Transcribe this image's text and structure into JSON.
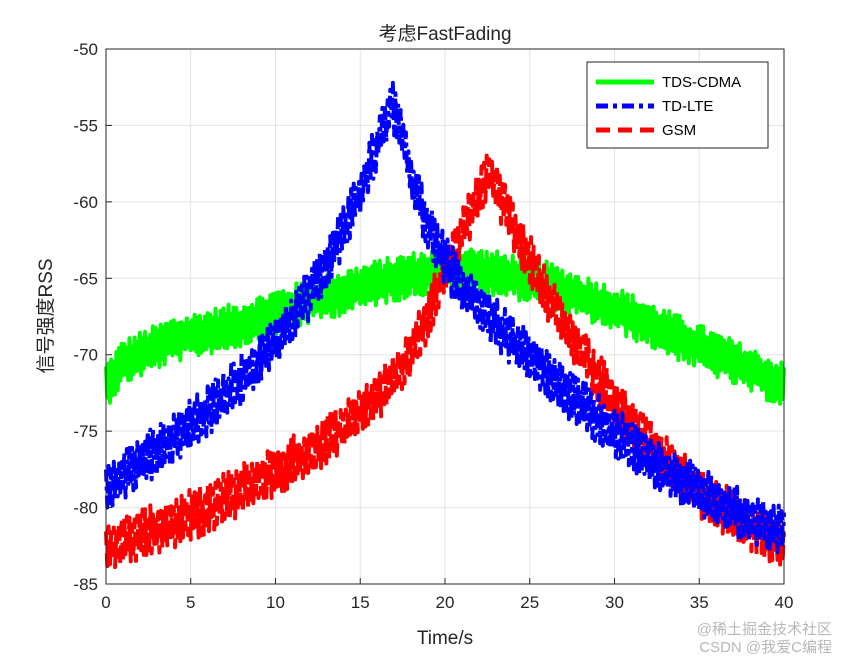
{
  "chart_data": {
    "type": "line",
    "title": "考虑FastFading",
    "xlabel": "Time/s",
    "ylabel": "信号强度RSS",
    "xlim": [
      0,
      40
    ],
    "ylim": [
      -85,
      -50
    ],
    "xticks": [
      0,
      5,
      10,
      15,
      20,
      25,
      30,
      35,
      40
    ],
    "yticks": [
      -50,
      -55,
      -60,
      -65,
      -70,
      -75,
      -80,
      -85
    ],
    "xtick_labels": [
      "0",
      "5",
      "10",
      "15",
      "20",
      "25",
      "30",
      "35",
      "40"
    ],
    "ytick_labels": [
      "-50",
      "-55",
      "-60",
      "-65",
      "-70",
      "-75",
      "-80",
      "-85"
    ],
    "grid": true,
    "legend_position": "top-right",
    "x": [
      0,
      1,
      2,
      3,
      4,
      5,
      6,
      7,
      8,
      9,
      10,
      11,
      12,
      13,
      14,
      15,
      16,
      16.8,
      17.5,
      18,
      19,
      20,
      21,
      22,
      22.5,
      23,
      24,
      25,
      26,
      27,
      28,
      29,
      30,
      31,
      32,
      33,
      34,
      35,
      36,
      37,
      38,
      39,
      40
    ],
    "series": [
      {
        "name": "TDS-CDMA",
        "color": "#00ff00",
        "style": "solid",
        "values": [
          -72,
          -70.5,
          -70,
          -69.5,
          -69,
          -68.8,
          -68.5,
          -68.3,
          -68,
          -67.6,
          -67.2,
          -66.9,
          -66.5,
          -66.2,
          -65.9,
          -65.6,
          -65.3,
          -65.1,
          -64.9,
          -64.8,
          -64.6,
          -64.5,
          -64.4,
          -64.5,
          -64.6,
          -64.7,
          -64.9,
          -65.1,
          -65.4,
          -65.8,
          -66.2,
          -66.6,
          -67,
          -67.5,
          -68,
          -68.5,
          -69,
          -69.5,
          -70,
          -70.5,
          -71,
          -71.5,
          -72
        ]
      },
      {
        "name": "TD-LTE",
        "color": "#0000ff",
        "style": "dashdot",
        "values": [
          -78.5,
          -77.8,
          -77,
          -76.3,
          -75.5,
          -74.6,
          -73.7,
          -72.7,
          -71.6,
          -70.4,
          -69.1,
          -67.6,
          -66,
          -64.1,
          -61.9,
          -59.3,
          -56.3,
          -53.5,
          -55.5,
          -58.5,
          -61.5,
          -63.9,
          -65.5,
          -66.8,
          -67.4,
          -68,
          -69.2,
          -70.3,
          -71.3,
          -72.3,
          -73.3,
          -74.2,
          -75.1,
          -76,
          -76.8,
          -77.6,
          -78.3,
          -79,
          -79.6,
          -80.2,
          -80.7,
          -81.2,
          -81.6
        ]
      },
      {
        "name": "GSM",
        "color": "#ff0000",
        "style": "dashed",
        "values": [
          -82.5,
          -82.2,
          -81.8,
          -81.4,
          -81,
          -80.5,
          -80,
          -79.4,
          -78.8,
          -78.2,
          -77.6,
          -77,
          -76.3,
          -75.5,
          -74.7,
          -73.8,
          -72.7,
          -71.8,
          -70.8,
          -69.8,
          -67.5,
          -64.5,
          -62,
          -59.5,
          -58,
          -59,
          -61.5,
          -63.8,
          -66,
          -68,
          -69.8,
          -71.5,
          -73,
          -74.5,
          -75.8,
          -77,
          -78,
          -79,
          -79.8,
          -80.5,
          -81.2,
          -81.8,
          -82.5
        ]
      }
    ],
    "legend": [
      "TDS-CDMA",
      "TD-LTE",
      "GSM"
    ]
  },
  "watermark": "CSDN @我爱C编程",
  "watermark_site": "@稀土掘金技术社区"
}
